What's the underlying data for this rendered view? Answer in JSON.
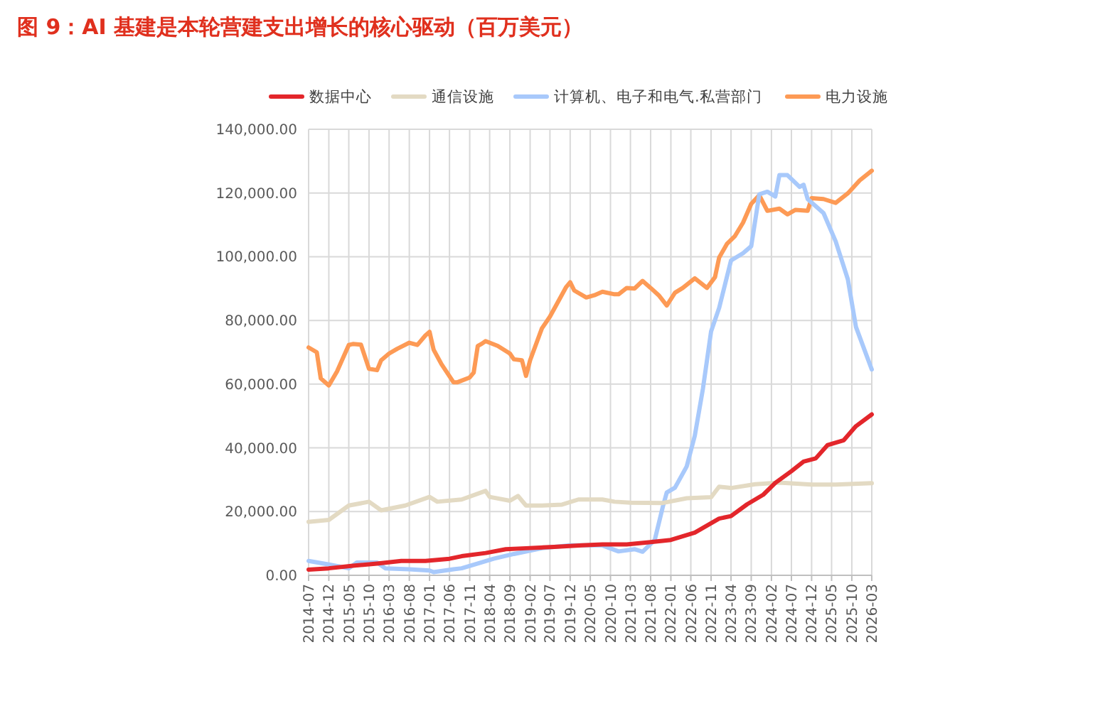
{
  "chart_data": {
    "type": "line",
    "title": "图 9：AI 基建是本轮营建支出增长的核心驱动（百万美元）",
    "legend": "top",
    "grid": true,
    "marker": "none",
    "line_style": "solid",
    "xlim": [
      "2014-07",
      "2026-03"
    ],
    "xticks": [
      "2014-07",
      "2014-12",
      "2015-05",
      "2015-10",
      "2016-03",
      "2016-08",
      "2017-01",
      "2017-06",
      "2017-11",
      "2018-04",
      "2018-09",
      "2019-02",
      "2019-07",
      "2019-12",
      "2020-05",
      "2020-10",
      "2021-03",
      "2021-08",
      "2022-01",
      "2022-06",
      "2022-11",
      "2023-04",
      "2023-09",
      "2024-02",
      "2024-07",
      "2024-12",
      "2025-05",
      "2025-10",
      "2026-03"
    ],
    "ylim": [
      0,
      140000
    ],
    "yticks": [
      {
        "value": 0,
        "label": "0.00"
      },
      {
        "value": 20000,
        "label": "20,000.00"
      },
      {
        "value": 40000,
        "label": "40,000.00"
      },
      {
        "value": 60000,
        "label": "60,000.00"
      },
      {
        "value": 80000,
        "label": "80,000.00"
      },
      {
        "value": 100000,
        "label": "100,000.00"
      },
      {
        "value": 120000,
        "label": "120,000.00"
      },
      {
        "value": 140000,
        "label": "140,000.00"
      }
    ],
    "series": [
      {
        "name": "数据中心",
        "color": "#e3262b",
        "x": [
          "2014-07",
          "2014-12",
          "2015-06",
          "2015-12",
          "2016-06",
          "2016-12",
          "2017-06",
          "2017-09",
          "2018-03",
          "2018-08",
          "2019-01",
          "2019-08",
          "2020-03",
          "2020-08",
          "2021-02",
          "2021-08",
          "2022-01",
          "2022-07",
          "2023-01",
          "2023-04",
          "2023-08",
          "2023-12",
          "2024-03",
          "2024-07",
          "2024-10",
          "2025-01",
          "2025-04",
          "2025-08",
          "2025-11",
          "2026-03"
        ],
        "values": [
          1800,
          2200,
          3000,
          3700,
          4500,
          4500,
          5200,
          6000,
          7000,
          8200,
          8500,
          8900,
          9400,
          9700,
          9700,
          10400,
          11100,
          13400,
          17800,
          18600,
          22300,
          25300,
          29000,
          32700,
          35700,
          36700,
          40900,
          42400,
          46800,
          50500
        ]
      },
      {
        "name": "通信设施",
        "color": "#e3dac3",
        "x": [
          "2014-07",
          "2014-12",
          "2015-05",
          "2015-10",
          "2016-01",
          "2016-07",
          "2017-01",
          "2017-03",
          "2017-09",
          "2018-03",
          "2018-04",
          "2018-09",
          "2018-11",
          "2019-01",
          "2019-05",
          "2019-10",
          "2020-02",
          "2020-08",
          "2020-11",
          "2021-03",
          "2021-11",
          "2022-05",
          "2022-11",
          "2023-01",
          "2023-04",
          "2023-10",
          "2024-04",
          "2024-12",
          "2025-06",
          "2026-03"
        ],
        "values": [
          16800,
          17400,
          21900,
          23100,
          20400,
          21900,
          24600,
          23100,
          23800,
          26500,
          24600,
          23400,
          24900,
          21900,
          21900,
          22200,
          23800,
          23800,
          23100,
          22800,
          22700,
          24200,
          24500,
          27800,
          27400,
          28600,
          29100,
          28500,
          28500,
          28900
        ]
      },
      {
        "name": "计算机、电子和电气.私营部门",
        "color": "#a8c9fb",
        "x": [
          "2014-07",
          "2014-12",
          "2015-05",
          "2015-07",
          "2015-12",
          "2016-02",
          "2016-08",
          "2017-01",
          "2017-02",
          "2017-07",
          "2017-09",
          "2018-01",
          "2018-05",
          "2018-10",
          "2019-05",
          "2019-12",
          "2020-05",
          "2020-08",
          "2020-12",
          "2021-04",
          "2021-06",
          "2021-09",
          "2021-11",
          "2021-12",
          "2022-02",
          "2022-05",
          "2022-07",
          "2022-09",
          "2022-11",
          "2023-01",
          "2023-04",
          "2023-07",
          "2023-09",
          "2023-11",
          "2024-01",
          "2024-03",
          "2024-04",
          "2024-06",
          "2024-09",
          "2024-10",
          "2024-11",
          "2025-03",
          "2025-06",
          "2025-09",
          "2025-11",
          "2026-03"
        ],
        "values": [
          4500,
          3400,
          2200,
          4000,
          4000,
          2200,
          1900,
          1500,
          1000,
          1900,
          2200,
          3700,
          5200,
          6700,
          8500,
          9400,
          9400,
          9400,
          7500,
          8200,
          7400,
          11100,
          21500,
          26000,
          27500,
          34200,
          43800,
          58700,
          76500,
          83900,
          98800,
          101100,
          103300,
          119600,
          120400,
          118900,
          125600,
          125600,
          121900,
          122600,
          118100,
          113700,
          104800,
          92900,
          78000,
          64600
        ]
      },
      {
        "name": "电力设施",
        "color": "#fd9a55",
        "x": [
          "2014-07",
          "2014-09",
          "2014-10",
          "2014-12",
          "2015-02",
          "2015-05",
          "2015-06",
          "2015-08",
          "2015-10",
          "2015-12",
          "2016-01",
          "2016-03",
          "2016-05",
          "2016-08",
          "2016-10",
          "2016-12",
          "2017-01",
          "2017-02",
          "2017-04",
          "2017-07",
          "2017-08",
          "2017-11",
          "2017-12",
          "2018-01",
          "2018-02",
          "2018-03",
          "2018-06",
          "2018-09",
          "2018-10",
          "2018-12",
          "2019-01",
          "2019-02",
          "2019-05",
          "2019-07",
          "2019-11",
          "2019-12",
          "2020-01",
          "2020-04",
          "2020-06",
          "2020-08",
          "2020-11",
          "2020-12",
          "2021-02",
          "2021-04",
          "2021-06",
          "2021-08",
          "2021-10",
          "2021-12",
          "2022-02",
          "2022-04",
          "2022-07",
          "2022-10",
          "2022-12",
          "2023-01",
          "2023-03",
          "2023-05",
          "2023-07",
          "2023-09",
          "2023-11",
          "2024-01",
          "2024-04",
          "2024-06",
          "2024-08",
          "2024-11",
          "2024-12",
          "2025-03",
          "2025-06",
          "2025-09",
          "2025-12",
          "2026-03"
        ],
        "values": [
          71500,
          70000,
          61800,
          59600,
          64000,
          72300,
          72600,
          72400,
          64800,
          64400,
          67500,
          69600,
          71100,
          73000,
          72300,
          75300,
          76400,
          70800,
          66300,
          60600,
          60600,
          62100,
          63600,
          72000,
          72700,
          73500,
          72000,
          69600,
          67800,
          67500,
          62600,
          67500,
          77500,
          81200,
          90500,
          92000,
          89400,
          87200,
          87900,
          89000,
          88200,
          88200,
          90200,
          90000,
          92400,
          90200,
          87900,
          84700,
          88700,
          90200,
          93200,
          90200,
          93600,
          99700,
          104000,
          106500,
          110700,
          116600,
          119300,
          114400,
          115100,
          113300,
          114700,
          114400,
          118400,
          118100,
          116900,
          119900,
          124000,
          127000
        ]
      }
    ]
  }
}
